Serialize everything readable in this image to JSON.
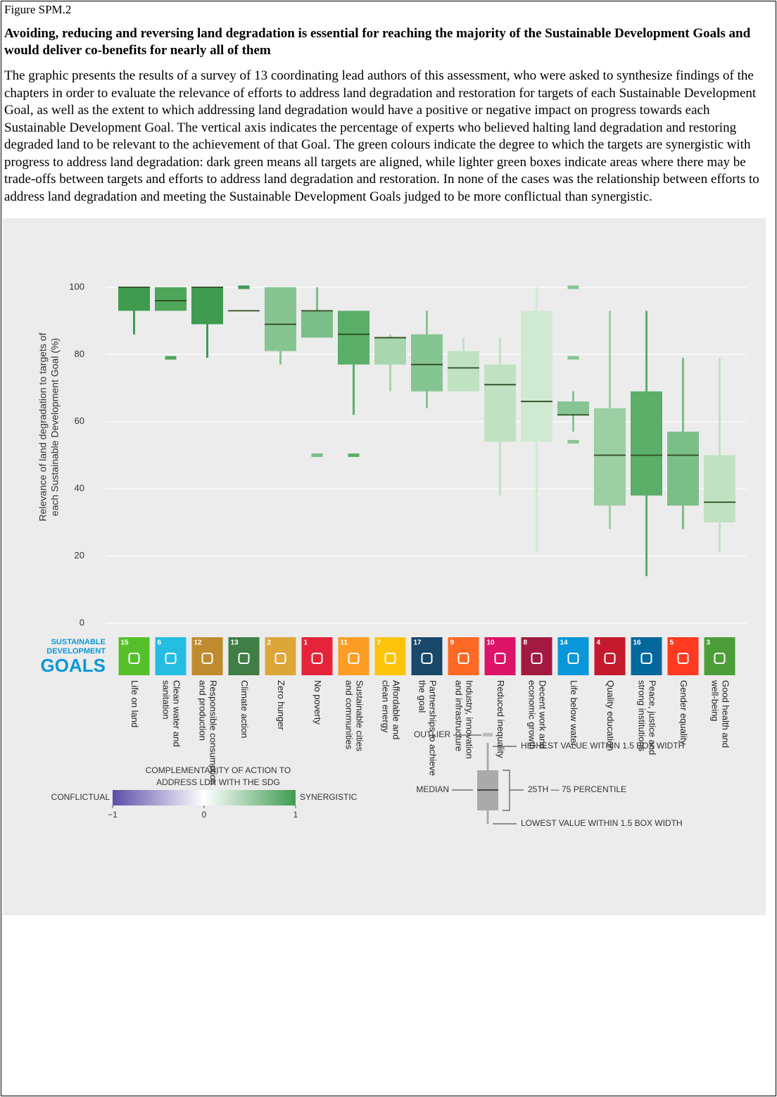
{
  "document": {
    "figure_label": "Figure SPM.2",
    "title": "Avoiding, reducing and reversing land degradation is essential for reaching the majority of the Sustainable Development Goals and would deliver co-benefits for nearly all of them",
    "body": "The graphic presents the results of a survey of 13 coordinating lead authors of this assessment, who were asked to synthesize findings of the chapters in order to evaluate the relevance of efforts to address land degradation and restoration for targets of each Sustainable Development Goal, as well as the extent to which addressing land degradation would have a positive or negative impact on progress towards each Sustainable Development Goal. The vertical axis indicates the percentage of experts who believed halting land degradation and restoring degraded land to be relevant to the achievement of that Goal. The green colours indicate the degree to which the targets are synergistic with progress to address land degradation: dark green means all targets are aligned, while lighter green boxes indicate areas where there may be trade-offs between targets and efforts to address land degradation and restoration. In none of the cases was the relationship between efforts to address land degradation and meeting the Sustainable Development Goals judged to be more conflictual than synergistic."
  },
  "chart_data": {
    "type": "box",
    "ylabel": [
      "Relevance of land degradation to targets of",
      "each Sustainable Development Goal (%)"
    ],
    "ylim": [
      0,
      100
    ],
    "yticks": [
      0,
      20,
      40,
      60,
      80,
      100
    ],
    "grid": true,
    "categories": [
      [
        "Life on land"
      ],
      [
        "Clean water and",
        "sanitation"
      ],
      [
        "Responsible consumption",
        "and production"
      ],
      [
        "Climate action"
      ],
      [
        "Zero hunger"
      ],
      [
        "No poverty"
      ],
      [
        "Sustainable cities",
        "and communities"
      ],
      [
        "Affordable and",
        "clean energy"
      ],
      [
        "Partnerships to achieve",
        "the goal"
      ],
      [
        "Industry, innovation",
        "and infrastructure"
      ],
      [
        "Reduced inequality"
      ],
      [
        "Decent work and",
        "economic growth"
      ],
      [
        "Life below water"
      ],
      [
        "Quality education"
      ],
      [
        "Peace, justice and",
        "strong institutions"
      ],
      [
        "Gender equality"
      ],
      [
        "Good health and",
        "well-being"
      ]
    ],
    "whisker_low": [
      86,
      93,
      79,
      93,
      77,
      85,
      62,
      69,
      64,
      69,
      38,
      21,
      57,
      28,
      14,
      28,
      21
    ],
    "q1": [
      93,
      93,
      89,
      93,
      81,
      85,
      77,
      77,
      69,
      69,
      54,
      54,
      62,
      35,
      38,
      35,
      30
    ],
    "median": [
      100,
      96,
      100,
      93,
      89,
      93,
      86,
      85,
      77,
      76,
      71,
      66,
      62,
      50,
      50,
      50,
      36
    ],
    "q3": [
      100,
      100,
      100,
      93,
      100,
      93,
      93,
      85,
      86,
      81,
      77,
      93,
      66,
      64,
      69,
      57,
      50
    ],
    "whisker_high": [
      100,
      100,
      100,
      93,
      100,
      100,
      93,
      86,
      93,
      85,
      85,
      100,
      69,
      93,
      93,
      79,
      79
    ],
    "outliers": [
      [],
      [
        79
      ],
      [],
      [
        100
      ],
      [],
      [
        50
      ],
      [
        50
      ],
      [],
      [],
      [],
      [],
      [],
      [
        100,
        79,
        54
      ],
      [],
      [],
      [],
      []
    ],
    "colors": [
      "#3e9b4f",
      "#4ea65b",
      "#3e9b4f",
      "#3e9b4f",
      "#86c592",
      "#7bbf88",
      "#5aae68",
      "#a8d6ae",
      "#86c592",
      "#c0e2c3",
      "#c0e2c3",
      "#d0ead2",
      "#86c592",
      "#9ccfa3",
      "#5aae68",
      "#7bbf88",
      "#c0e2c3"
    ],
    "median_color": "#2f4a1f",
    "sdg_logo": [
      "SUSTAINABLE",
      "DEVELOPMENT",
      "GOALS"
    ],
    "sdg_numbers": [
      "15",
      "6",
      "12",
      "13",
      "2",
      "1",
      "11",
      "7",
      "17",
      "9",
      "10",
      "8",
      "14",
      "4",
      "16",
      "5",
      "3"
    ],
    "sdg_colors": [
      "#56c02b",
      "#26bde2",
      "#bf8b2e",
      "#3f7e44",
      "#dda63a",
      "#e5243b",
      "#fd9d24",
      "#fcc30b",
      "#19486a",
      "#fd6925",
      "#dd1367",
      "#a21942",
      "#0a97d9",
      "#c5192d",
      "#00689d",
      "#ff3a21",
      "#4c9f38"
    ],
    "colorbar": {
      "title": [
        "COMPLEMENTARITY OF ACTION TO",
        "ADDRESS LDR WITH THE SDG"
      ],
      "low_label": "CONFLICTUAL",
      "high_label": "SYNERGISTIC",
      "ticks": [
        {
          "value": -1,
          "label": "−1"
        },
        0,
        1
      ],
      "lim": [
        -1,
        1
      ],
      "colors": [
        "#5b4ea8",
        "#ffffff",
        "#3e9b4f"
      ]
    },
    "key": {
      "outlier": "OUTLIER",
      "high": "HIGHEST VALUE WITHIN 1.5 BOX WIDTH",
      "median": "MEDIAN",
      "box": "25TH — 75 PERCENTILE",
      "low": "LOWEST VALUE WITHIN 1.5 BOX WIDTH"
    }
  }
}
